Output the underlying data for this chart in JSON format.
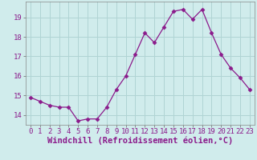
{
  "x": [
    0,
    1,
    2,
    3,
    4,
    5,
    6,
    7,
    8,
    9,
    10,
    11,
    12,
    13,
    14,
    15,
    16,
    17,
    18,
    19,
    20,
    21,
    22,
    23
  ],
  "y": [
    14.9,
    14.7,
    14.5,
    14.4,
    14.4,
    13.7,
    13.8,
    13.8,
    14.4,
    15.3,
    16.0,
    17.1,
    18.2,
    17.7,
    18.5,
    19.3,
    19.4,
    18.9,
    19.4,
    18.2,
    17.1,
    16.4,
    15.9,
    15.3
  ],
  "line_color": "#8b1a8b",
  "marker": "D",
  "marker_size": 2.5,
  "bg_color": "#d0ecec",
  "grid_color": "#b0d4d4",
  "xlabel": "Windchill (Refroidissement éolien,°C)",
  "xlabel_fontsize": 7.5,
  "tick_fontsize": 6.5,
  "ylim": [
    13.5,
    19.8
  ],
  "xlim": [
    -0.5,
    23.5
  ],
  "yticks": [
    14,
    15,
    16,
    17,
    18,
    19
  ],
  "xticks": [
    0,
    1,
    2,
    3,
    4,
    5,
    6,
    7,
    8,
    9,
    10,
    11,
    12,
    13,
    14,
    15,
    16,
    17,
    18,
    19,
    20,
    21,
    22,
    23
  ]
}
